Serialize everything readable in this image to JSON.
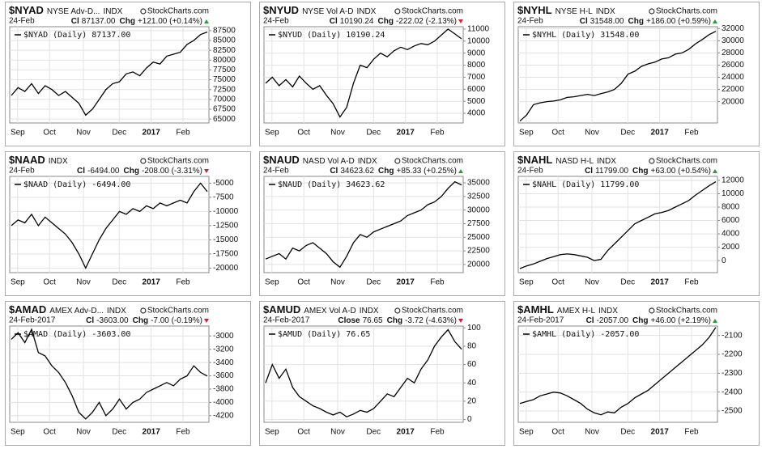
{
  "chart_data": [
    {
      "type": "line",
      "symbol": "$NYAD",
      "name": "NYSE Adv-D...",
      "exchange": "INDX",
      "brand": "StockCharts.com",
      "date": "24-Feb",
      "close_label": "Cl",
      "close": "87137.00",
      "change_label": "Chg",
      "change": "+121.00 (+0.14%)",
      "change_direction": "up",
      "grid": true,
      "x_labels": [
        "Sep",
        "Oct",
        "Nov",
        "Dec",
        "2017",
        "Feb"
      ],
      "ylim": [
        64000,
        88500
      ],
      "yticks": [
        65000,
        67500,
        70000,
        72500,
        75000,
        77500,
        80000,
        82500,
        85000,
        87500
      ],
      "series": [
        {
          "name": "$NYAD (Daily) 87137.00",
          "color": "#000000",
          "values": [
            71000,
            73000,
            72000,
            74000,
            71500,
            73500,
            72500,
            71000,
            72000,
            70500,
            69000,
            66000,
            67500,
            70000,
            72500,
            74000,
            74500,
            76500,
            77000,
            76000,
            78000,
            79500,
            79000,
            81000,
            81500,
            82000,
            84000,
            85000,
            86500,
            87137
          ]
        }
      ]
    },
    {
      "type": "line",
      "symbol": "$NYUD",
      "name": "NYSE Vol A-D",
      "exchange": "INDX",
      "brand": "StockCharts.com",
      "date": "24-Feb",
      "close_label": "Cl",
      "close": "10190.24",
      "change_label": "Chg",
      "change": "-222.02 (-2.13%)",
      "change_direction": "down",
      "grid": true,
      "x_labels": [
        "Sep",
        "Oct",
        "Nov",
        "Dec",
        "2017",
        "Feb"
      ],
      "ylim": [
        3200,
        11200
      ],
      "yticks": [
        4000,
        5000,
        6000,
        7000,
        8000,
        9000,
        10000,
        11000
      ],
      "series": [
        {
          "name": "$NYUD (Daily) 10190.24",
          "color": "#000000",
          "values": [
            6500,
            7000,
            6300,
            6800,
            6200,
            7100,
            6500,
            6000,
            6300,
            5500,
            4800,
            3700,
            4500,
            6500,
            8000,
            7800,
            8500,
            9000,
            8700,
            9200,
            9500,
            9300,
            9600,
            9800,
            9700,
            10000,
            10500,
            11000,
            10600,
            10190.24
          ]
        }
      ]
    },
    {
      "type": "line",
      "symbol": "$NYHL",
      "name": "NYSE H-L",
      "exchange": "INDX",
      "brand": "StockCharts.com",
      "date": "24-Feb",
      "close_label": "Cl",
      "close": "31548.00",
      "change_label": "Chg",
      "change": "+186.00 (+0.59%)",
      "change_direction": "up",
      "grid": true,
      "x_labels": [
        "Sep",
        "Oct",
        "Nov",
        "Dec",
        "2017",
        "Feb"
      ],
      "ylim": [
        16500,
        32300
      ],
      "yticks": [
        20000,
        22000,
        24000,
        26000,
        28000,
        30000,
        32000
      ],
      "series": [
        {
          "name": "$NYHL (Daily) 31548.00",
          "color": "#000000",
          "values": [
            16800,
            17800,
            19500,
            19800,
            20000,
            20100,
            20300,
            20700,
            20800,
            21000,
            21200,
            21000,
            21300,
            21600,
            22000,
            23000,
            24500,
            25000,
            25800,
            26200,
            26500,
            27000,
            27200,
            27800,
            28000,
            28600,
            29500,
            30200,
            31000,
            31548
          ]
        }
      ]
    },
    {
      "type": "line",
      "symbol": "$NAAD",
      "exchange": "INDX",
      "brand": "StockCharts.com",
      "date": "24-Feb",
      "close_label": "Cl",
      "close": "-6494.00",
      "change_label": "Chg",
      "change": "-208.00 (-3.31%)",
      "change_direction": "down",
      "grid": true,
      "x_labels": [
        "Sep",
        "Oct",
        "Nov",
        "Dec",
        "2017",
        "Feb"
      ],
      "ylim": [
        -20800,
        -3800
      ],
      "yticks": [
        -20000,
        -17500,
        -15000,
        -12500,
        -10000,
        -7500,
        -5000
      ],
      "series": [
        {
          "name": "$NAAD (Daily) -6494.00",
          "color": "#000000",
          "values": [
            -12500,
            -11500,
            -12000,
            -10500,
            -12500,
            -11000,
            -12000,
            -13000,
            -14000,
            -15500,
            -17500,
            -20000,
            -17500,
            -15000,
            -13000,
            -11500,
            -10000,
            -10500,
            -9500,
            -10000,
            -9000,
            -9500,
            -8500,
            -9000,
            -8500,
            -8000,
            -8500,
            -6500,
            -5000,
            -6494
          ]
        }
      ]
    },
    {
      "type": "line",
      "symbol": "$NAUD",
      "name": "NASD Vol A-D",
      "exchange": "INDX",
      "brand": "StockCharts.com",
      "date": "24-Feb",
      "close_label": "Cl",
      "close": "34623.62",
      "change_label": "Chg",
      "change": "+85.33 (+0.25%)",
      "change_direction": "up",
      "grid": true,
      "x_labels": [
        "Sep",
        "Oct",
        "Nov",
        "Dec",
        "2017",
        "Feb"
      ],
      "ylim": [
        18500,
        36200
      ],
      "yticks": [
        20000,
        22500,
        25000,
        27500,
        30000,
        32500,
        35000
      ],
      "series": [
        {
          "name": "$NAUD (Daily) 34623.62",
          "color": "#000000",
          "values": [
            21000,
            21500,
            22000,
            21000,
            23000,
            22500,
            23500,
            24000,
            23000,
            22000,
            20500,
            19500,
            21500,
            24000,
            25500,
            25000,
            26000,
            26500,
            27000,
            27500,
            28000,
            29000,
            29500,
            30000,
            31000,
            31500,
            32500,
            34000,
            35200,
            34623.62
          ]
        }
      ]
    },
    {
      "type": "line",
      "symbol": "$NAHL",
      "name": "NASD H-L",
      "exchange": "INDX",
      "brand": "StockCharts.com",
      "date": "24-Feb",
      "close_label": "Cl",
      "close": "11799.00",
      "change_label": "Chg",
      "change": "+63.00 (+0.54%)",
      "change_direction": "up",
      "grid": true,
      "x_labels": [
        "Sep",
        "Oct",
        "Nov",
        "Dec",
        "2017",
        "Feb"
      ],
      "ylim": [
        -1800,
        12600
      ],
      "yticks": [
        0,
        2000,
        4000,
        6000,
        8000,
        10000,
        12000
      ],
      "series": [
        {
          "name": "$NAHL (Daily) 11799.00",
          "color": "#000000",
          "values": [
            -1200,
            -800,
            -500,
            -100,
            300,
            600,
            900,
            1000,
            900,
            700,
            500,
            0,
            200,
            1500,
            2500,
            3500,
            4500,
            5500,
            6000,
            6500,
            7000,
            7200,
            7500,
            8000,
            8500,
            9000,
            9800,
            10500,
            11200,
            11799
          ]
        }
      ]
    },
    {
      "type": "line",
      "symbol": "$AMAD",
      "name": "AMEX Adv-D...",
      "exchange": "INDX",
      "brand": "StockCharts.com",
      "date": "24-Feb-2017",
      "close_label": "Cl",
      "close": "-3603.00",
      "change_label": "Chg",
      "change": "-7.00 (-0.19%)",
      "change_direction": "down",
      "grid": true,
      "x_labels": [
        "Sep",
        "Oct",
        "Nov",
        "Dec",
        "2017",
        "Feb"
      ],
      "ylim": [
        -4300,
        -2850
      ],
      "yticks": [
        -4200,
        -4000,
        -3800,
        -3600,
        -3400,
        -3200,
        -3000
      ],
      "series": [
        {
          "name": "$AMAD (Daily) -3603.00",
          "color": "#000000",
          "values": [
            -3050,
            -2950,
            -3100,
            -2900,
            -3250,
            -3300,
            -3450,
            -3550,
            -3700,
            -3900,
            -4150,
            -4250,
            -4150,
            -4000,
            -4200,
            -4100,
            -3950,
            -4100,
            -4000,
            -3950,
            -3850,
            -3800,
            -3750,
            -3700,
            -3750,
            -3650,
            -3600,
            -3450,
            -3550,
            -3603
          ]
        }
      ]
    },
    {
      "type": "line",
      "symbol": "$AMUD",
      "name": "AMEX Vol A-D",
      "exchange": "INDX",
      "brand": "StockCharts.com",
      "date": "24-Feb-2017",
      "close_label": "Close",
      "close": "76.65",
      "change_label": "Chg",
      "change": "-3.72 (-4.63%)",
      "change_direction": "down",
      "grid": true,
      "x_labels": [
        "Sep",
        "Oct",
        "Nov",
        "Dec",
        "2017",
        "Feb"
      ],
      "ylim": [
        -3,
        102
      ],
      "yticks": [
        0,
        20,
        40,
        60,
        80,
        100
      ],
      "series": [
        {
          "name": "$AMUD (Daily) 76.65",
          "color": "#000000",
          "values": [
            40,
            60,
            45,
            55,
            35,
            25,
            20,
            15,
            12,
            8,
            5,
            8,
            3,
            6,
            10,
            8,
            12,
            20,
            28,
            25,
            35,
            45,
            40,
            55,
            65,
            80,
            90,
            98,
            85,
            76.65
          ]
        }
      ]
    },
    {
      "type": "line",
      "symbol": "$AMHL",
      "name": "AMEX H-L",
      "exchange": "INDX",
      "brand": "StockCharts.com",
      "date": "24-Feb-2017",
      "close_label": "Cl",
      "close": "-2057.00",
      "change_label": "Chg",
      "change": "+46.00 (+2.19%)",
      "change_direction": "up",
      "grid": true,
      "x_labels": [
        "Sep",
        "Oct",
        "Nov",
        "Dec",
        "2017",
        "Feb"
      ],
      "ylim": [
        -2560,
        -2050
      ],
      "yticks": [
        -2500,
        -2400,
        -2300,
        -2200,
        -2100
      ],
      "series": [
        {
          "name": "$AMHL (Daily) -2057.00",
          "color": "#000000",
          "values": [
            -2460,
            -2450,
            -2440,
            -2420,
            -2410,
            -2400,
            -2405,
            -2420,
            -2440,
            -2460,
            -2490,
            -2510,
            -2520,
            -2505,
            -2510,
            -2480,
            -2460,
            -2430,
            -2410,
            -2390,
            -2360,
            -2330,
            -2300,
            -2270,
            -2240,
            -2210,
            -2180,
            -2150,
            -2110,
            -2057
          ]
        }
      ]
    }
  ]
}
